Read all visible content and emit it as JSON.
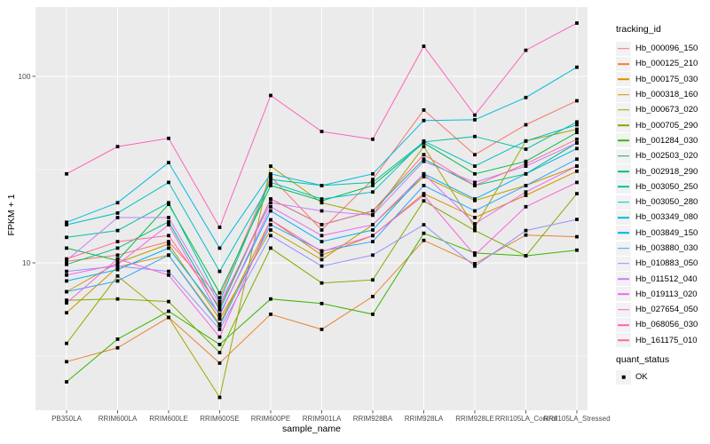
{
  "figure": {
    "y_axis_title": "FPKM + 1",
    "x_axis_title": "sample_name",
    "legend": {
      "tracking_title": "tracking_id",
      "quant_title": "quant_status",
      "quant_ok_label": "OK"
    },
    "panel_background": "#EBEBEB",
    "gridline_color": "#FFFFFF",
    "axis_text_color": "#4D4D4D",
    "point_color": "#000000"
  },
  "chart_data": {
    "type": "line",
    "title": "",
    "xlabel": "sample_name",
    "ylabel": "FPKM + 1",
    "y_scale": "log10",
    "ylim": [
      1.6,
      235
    ],
    "y_ticks": [
      {
        "value": 10,
        "label": "10"
      },
      {
        "value": 100,
        "label": "100"
      }
    ],
    "y_minor_gridlines": [
      3.162,
      31.62
    ],
    "grid": "white-on-gray",
    "legend_position": "right",
    "point_shape": "filled-square",
    "quant_status": "OK",
    "categories": [
      "PB350LA",
      "RRIM600LA",
      "RRIM600LE",
      "RRIM600SE",
      "RRIM600PE",
      "RRIM901LA",
      "RRIM928BA",
      "RRIM928LA",
      "RRIM928LE",
      "RRII105LA_Control",
      "RRII105LA_Stressed"
    ],
    "series": [
      {
        "name": "Hb_000096_150",
        "color": "#F8766D",
        "values": [
          10.2,
          11.0,
          13.0,
          6.5,
          29,
          15,
          28,
          66,
          38,
          55,
          74
        ]
      },
      {
        "name": "Hb_000125_210",
        "color": "#EA8331",
        "values": [
          2.95,
          3.5,
          5.1,
          2.9,
          5.3,
          4.4,
          6.6,
          13.2,
          9.9,
          14.1,
          13.8
        ]
      },
      {
        "name": "Hb_000175_030",
        "color": "#D89000",
        "values": [
          5.4,
          9.5,
          11.0,
          4.7,
          17,
          11,
          14,
          23.5,
          17.5,
          23,
          31
        ]
      },
      {
        "name": "Hb_000318_160",
        "color": "#C09B00",
        "values": [
          7.0,
          10.0,
          12.6,
          5.0,
          15,
          10.4,
          16,
          29,
          21.6,
          26,
          33
        ]
      },
      {
        "name": "Hb_000673_020",
        "color": "#A3A500",
        "values": [
          3.7,
          8.5,
          5.1,
          1.9,
          33,
          21,
          18.1,
          42,
          15.5,
          45,
          52
        ]
      },
      {
        "name": "Hb_000705_290",
        "color": "#7CAE00",
        "values": [
          6.3,
          6.4,
          6.2,
          3.3,
          12,
          7.8,
          8.1,
          21.5,
          14.9,
          10.9,
          23.5
        ]
      },
      {
        "name": "Hb_001284_030",
        "color": "#39B600",
        "values": [
          2.3,
          3.9,
          5.5,
          3.65,
          6.4,
          6.05,
          5.3,
          14.4,
          11.3,
          10.9,
          11.7
        ]
      },
      {
        "name": "Hb_002503_020",
        "color": "#00BB4E",
        "values": [
          12.0,
          10.3,
          20.6,
          6.9,
          26,
          21.5,
          26,
          44,
          30,
          35,
          50
        ]
      },
      {
        "name": "Hb_002918_290",
        "color": "#00BF7D",
        "values": [
          9.8,
          12.0,
          16.6,
          5.6,
          22,
          16,
          19,
          36,
          26,
          30,
          44
        ]
      },
      {
        "name": "Hb_003050_250",
        "color": "#00C1A3",
        "values": [
          13.7,
          14.9,
          21.0,
          6.2,
          28,
          26,
          27,
          44.5,
          47.6,
          40.7,
          57
        ]
      },
      {
        "name": "Hb_003050_280",
        "color": "#00BFC4",
        "values": [
          16.0,
          18.5,
          27.0,
          9.0,
          27,
          22,
          24,
          45,
          33,
          45,
          55
        ]
      },
      {
        "name": "Hb_003349_080",
        "color": "#00BAE0",
        "values": [
          16.5,
          21.0,
          34.5,
          12.0,
          30,
          26,
          30,
          58,
          58.5,
          77,
          112
        ]
      },
      {
        "name": "Hb_003849_150",
        "color": "#00B0F6",
        "values": [
          8.0,
          9.2,
          12.0,
          5.3,
          19,
          13,
          15,
          30,
          22,
          30,
          41
        ]
      },
      {
        "name": "Hb_003880_030",
        "color": "#35A2FF",
        "values": [
          7.0,
          8.0,
          11.0,
          4.6,
          16,
          11.6,
          13,
          26,
          19,
          26,
          36
        ]
      },
      {
        "name": "Hb_010883_050",
        "color": "#9590FF",
        "values": [
          9.0,
          9.6,
          9.0,
          4.4,
          14,
          9.6,
          11,
          16,
          9.6,
          14.9,
          17.1
        ]
      },
      {
        "name": "Hb_011512_040",
        "color": "#C77CFF",
        "values": [
          10.3,
          17.5,
          17.5,
          6.0,
          21,
          19,
          18,
          35,
          27,
          33,
          44
        ]
      },
      {
        "name": "Hb_019113_020",
        "color": "#E76BF3",
        "values": [
          8.6,
          9.8,
          16.0,
          5.2,
          20,
          14,
          16,
          30,
          16.2,
          24,
          33
        ]
      },
      {
        "name": "Hb_027654_050",
        "color": "#FA62DB",
        "values": [
          6.1,
          10.5,
          8.6,
          4.0,
          17,
          11.5,
          14,
          23,
          11.0,
          20,
          27
        ]
      },
      {
        "name": "Hb_068056_030",
        "color": "#FF62BC",
        "values": [
          30,
          42,
          46.5,
          15.5,
          79,
          50.6,
          46,
          145,
          62,
          138,
          193
        ]
      },
      {
        "name": "Hb_161175_010",
        "color": "#FF6A98",
        "values": [
          10.5,
          13.0,
          14.0,
          5.8,
          22,
          16,
          19,
          38,
          26,
          34,
          46
        ]
      }
    ]
  }
}
